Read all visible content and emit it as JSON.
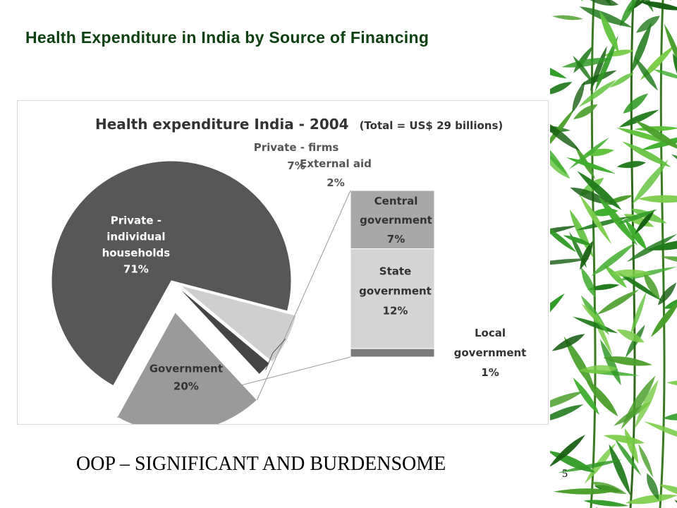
{
  "slide": {
    "title": "Health Expenditure in India by Source of Financing",
    "subtitle": "OOP – SIGNIFICANT AND BURDENSOME",
    "page_number": "5"
  },
  "colors": {
    "title": "#0d4010",
    "private_households": "#575757",
    "private_firms": "#cfcfcf",
    "external_aid": "#444444",
    "government": "#9a9a9a",
    "central_government": "#a8a8a8",
    "state_government": "#d4d4d4",
    "local_government": "#7a7a7a"
  },
  "chart_data": {
    "type": "pie",
    "title": "Health expenditure India - 2004",
    "title_note": "(Total = US$ 29 billions)",
    "slices": [
      {
        "key": "private_households",
        "label_lines": [
          "Private -",
          "individual",
          "households"
        ],
        "pct_label": "71%",
        "value": 71
      },
      {
        "key": "private_firms",
        "label_lines": [
          "Private - firms"
        ],
        "pct_label": "7%",
        "value": 7
      },
      {
        "key": "external_aid",
        "label_lines": [
          "External aid"
        ],
        "pct_label": "2%",
        "value": 2
      },
      {
        "key": "government",
        "label_lines": [
          "Government"
        ],
        "pct_label": "20%",
        "value": 20
      }
    ],
    "breakdown": {
      "of": "Government",
      "items": [
        {
          "key": "central_government",
          "label_lines": [
            "Central",
            "government"
          ],
          "pct_label": "7%",
          "value": 7
        },
        {
          "key": "state_government",
          "label_lines": [
            "State",
            "government"
          ],
          "pct_label": "12%",
          "value": 12
        },
        {
          "key": "local_government",
          "label_lines": [
            "Local",
            "government"
          ],
          "pct_label": "1%",
          "value": 1
        }
      ]
    }
  }
}
